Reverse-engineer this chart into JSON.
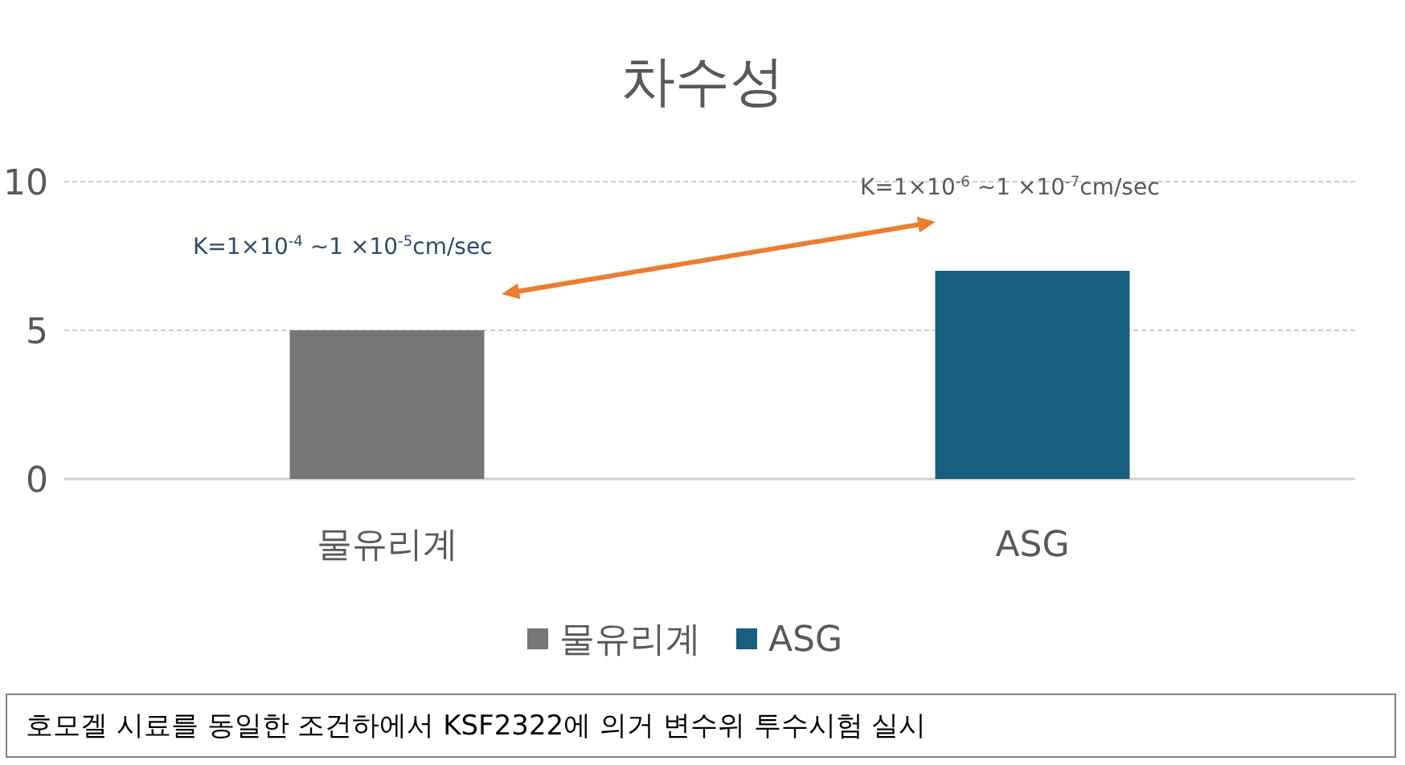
{
  "chart_data": {
    "type": "bar",
    "title": "차수성",
    "categories": [
      "물유리계",
      "ASG"
    ],
    "series": [
      {
        "name": "물유리계",
        "color": "#767676",
        "values": [
          5,
          null
        ]
      },
      {
        "name": "ASG",
        "color": "#175e80",
        "values": [
          null,
          7
        ]
      }
    ],
    "ylim": [
      0,
      10
    ],
    "yticks": [
      0,
      5,
      10
    ],
    "grid": "y",
    "legend": "bottom",
    "annotations": [
      "K=1×10$^{-4}$ ~1 ×10$^{-5}$cm/sec",
      "K=1×10$^{-6}$ ~1 ×10$^{-7}$cm/sec",
      "호모겔 시료를 동일한 조건하에서 KSF2322에 의거 변수위 투수시험 실시"
    ]
  }
}
